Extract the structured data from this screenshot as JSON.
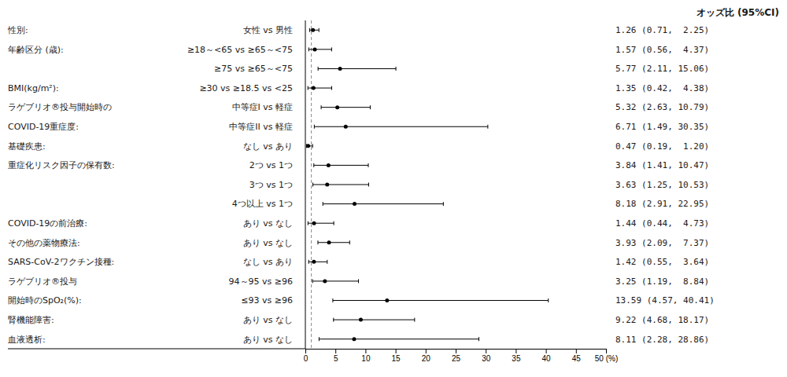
{
  "chart_data": {
    "type": "forest",
    "orientation": "horizontal",
    "grid": false,
    "annotations": [
      "オッズ比 (95%CI)"
    ],
    "groups": [
      "性別:",
      "年齢区分 (歳):",
      null,
      "BMI(kg/m²):",
      "ラゲブリオ®投与開始時の",
      "COVID-19重症度:",
      "基礎疾患:",
      "重症化リスク因子の保有数:",
      null,
      null,
      "COVID-19の前治療:",
      "その他の薬物療法:",
      "SARS-CoV-2ワクチン接種:",
      "ラゲブリオ®投与",
      "  開始時のSpO₂(%):",
      "腎機能障害:",
      "血液透析:"
    ],
    "categories": [
      "女性 vs 男性",
      "≥18～<65 vs ≥65～<75",
      "≥75 vs ≥65～<75",
      "≥30 vs ≥18.5 vs <25",
      "中等症I vs 軽症",
      "中等症II vs 軽症",
      "なし vs あり",
      "2つ vs 1つ",
      "3つ vs 1つ",
      "4つ以上 vs 1つ",
      "あり vs なし",
      "あり vs なし",
      "なし vs あり",
      "94～95 vs ≥96",
      "≤93 vs ≥96",
      "あり vs なし",
      "あり vs なし"
    ],
    "values": [
      1.26,
      1.57,
      5.77,
      1.35,
      5.32,
      6.71,
      0.47,
      3.84,
      3.63,
      8.18,
      1.44,
      3.93,
      1.42,
      3.25,
      13.59,
      9.22,
      8.11
    ],
    "ci_lo": [
      0.71,
      0.56,
      2.11,
      0.42,
      2.63,
      1.49,
      0.19,
      1.41,
      1.25,
      2.91,
      0.44,
      2.09,
      0.55,
      1.19,
      4.57,
      4.68,
      2.28
    ],
    "ci_hi": [
      2.25,
      4.37,
      15.06,
      4.38,
      10.79,
      30.35,
      1.2,
      10.47,
      10.53,
      22.95,
      4.73,
      7.37,
      3.64,
      8.84,
      40.41,
      18.17,
      28.86
    ],
    "value_labels": [
      "1.26 (0.71,  2.25)",
      "1.57 (0.56,  4.37)",
      "5.77 (2.11, 15.06)",
      "1.35 (0.42,  4.38)",
      "5.32 (2.63, 10.79)",
      "6.71 (1.49, 30.35)",
      "0.47 (0.19,  1.20)",
      "3.84 (1.41, 10.47)",
      "3.63 (1.25, 10.53)",
      "8.18 (2.91, 22.95)",
      "1.44 (0.44,  4.73)",
      "3.93 (2.09,  7.37)",
      "1.42 (0.55,  3.64)",
      "3.25 (1.19,  8.84)",
      "13.59 (4.57, 40.41)",
      "9.22 (4.68, 18.17)",
      "8.11 (2.28, 28.86)"
    ],
    "reference_x": 1.0,
    "xlim": [
      0,
      50
    ],
    "xticks": [
      0,
      5,
      10,
      15,
      20,
      25,
      30,
      35,
      40,
      45,
      {
        "value": 50,
        "label": "50 (%)"
      }
    ]
  }
}
